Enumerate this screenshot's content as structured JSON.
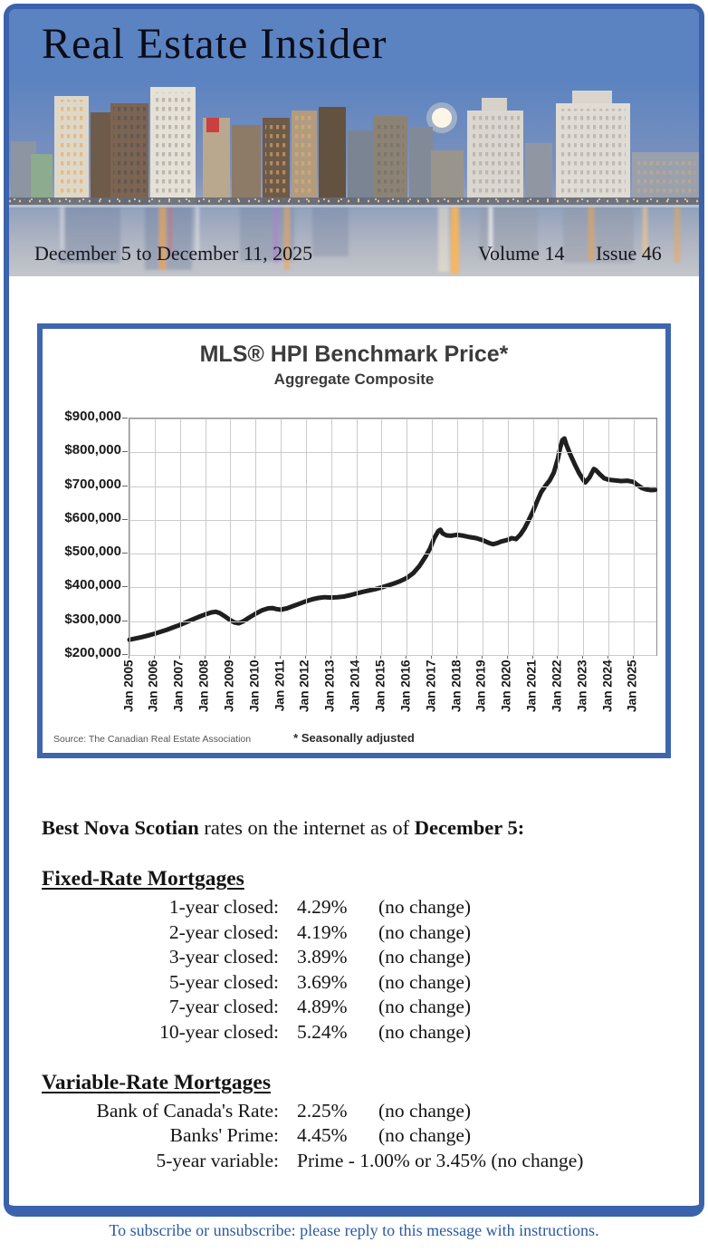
{
  "header": {
    "title": "Real Estate Insider",
    "date_range": "December 5 to December 11, 2025",
    "volume": "Volume 14",
    "issue": "Issue 46"
  },
  "chart_data": {
    "type": "line",
    "title": "MLS® HPI Benchmark Price*",
    "subtitle": "Aggregate Composite",
    "xlabel": "",
    "ylabel": "",
    "x_range": [
      2005.0,
      2025.9
    ],
    "y_range": [
      200000,
      900000
    ],
    "y_tick_labels": [
      "$900,000",
      "$800,000",
      "$700,000",
      "$600,000",
      "$500,000",
      "$400,000",
      "$300,000",
      "$200,000"
    ],
    "x_tick_labels": [
      "Jan 2005",
      "Jan 2006",
      "Jan 2007",
      "Jan 2008",
      "Jan 2009",
      "Jan 2010",
      "Jan 2011",
      "Jan 2012",
      "Jan 2013",
      "Jan 2014",
      "Jan 2015",
      "Jan 2016",
      "Jan 2017",
      "Jan 2018",
      "Jan 2019",
      "Jan 2020",
      "Jan 2021",
      "Jan 2022",
      "Jan 2023",
      "Jan 2024",
      "Jan 2025"
    ],
    "grid": true,
    "legend": "none",
    "line_color": "#1f1f1f",
    "source": "Source: The Canadian Real Estate Association",
    "footnote": "* Seasonally adjusted",
    "series": [
      {
        "name": "Aggregate Composite Benchmark Price (seasonally adjusted)",
        "points": [
          [
            2005.0,
            245000
          ],
          [
            2005.25,
            249000
          ],
          [
            2005.5,
            253000
          ],
          [
            2005.75,
            258000
          ],
          [
            2006.0,
            263000
          ],
          [
            2006.25,
            269000
          ],
          [
            2006.5,
            275000
          ],
          [
            2006.75,
            282000
          ],
          [
            2007.0,
            289000
          ],
          [
            2007.25,
            297000
          ],
          [
            2007.5,
            305000
          ],
          [
            2007.75,
            313000
          ],
          [
            2008.0,
            320000
          ],
          [
            2008.25,
            326000
          ],
          [
            2008.42,
            328000
          ],
          [
            2008.58,
            324000
          ],
          [
            2008.75,
            316000
          ],
          [
            2009.0,
            303000
          ],
          [
            2009.17,
            296000
          ],
          [
            2009.33,
            294000
          ],
          [
            2009.5,
            299000
          ],
          [
            2009.75,
            311000
          ],
          [
            2010.0,
            322000
          ],
          [
            2010.25,
            332000
          ],
          [
            2010.5,
            338000
          ],
          [
            2010.67,
            339000
          ],
          [
            2010.83,
            336000
          ],
          [
            2011.0,
            334000
          ],
          [
            2011.25,
            338000
          ],
          [
            2011.5,
            345000
          ],
          [
            2011.75,
            352000
          ],
          [
            2012.0,
            359000
          ],
          [
            2012.25,
            365000
          ],
          [
            2012.5,
            369000
          ],
          [
            2012.75,
            371000
          ],
          [
            2013.0,
            370000
          ],
          [
            2013.25,
            371000
          ],
          [
            2013.5,
            373000
          ],
          [
            2013.75,
            377000
          ],
          [
            2014.0,
            382000
          ],
          [
            2014.25,
            387000
          ],
          [
            2014.5,
            391000
          ],
          [
            2014.75,
            395000
          ],
          [
            2015.0,
            400000
          ],
          [
            2015.25,
            406000
          ],
          [
            2015.5,
            412000
          ],
          [
            2015.75,
            419000
          ],
          [
            2016.0,
            428000
          ],
          [
            2016.25,
            442000
          ],
          [
            2016.5,
            463000
          ],
          [
            2016.75,
            492000
          ],
          [
            2016.92,
            515000
          ],
          [
            2017.08,
            545000
          ],
          [
            2017.25,
            567000
          ],
          [
            2017.33,
            571000
          ],
          [
            2017.42,
            560000
          ],
          [
            2017.58,
            554000
          ],
          [
            2017.75,
            553000
          ],
          [
            2018.0,
            556000
          ],
          [
            2018.25,
            553000
          ],
          [
            2018.5,
            549000
          ],
          [
            2018.75,
            546000
          ],
          [
            2019.0,
            540000
          ],
          [
            2019.25,
            532000
          ],
          [
            2019.42,
            528000
          ],
          [
            2019.58,
            531000
          ],
          [
            2019.75,
            536000
          ],
          [
            2020.0,
            541000
          ],
          [
            2020.17,
            546000
          ],
          [
            2020.33,
            543000
          ],
          [
            2020.5,
            556000
          ],
          [
            2020.67,
            575000
          ],
          [
            2020.83,
            598000
          ],
          [
            2021.0,
            625000
          ],
          [
            2021.17,
            655000
          ],
          [
            2021.33,
            682000
          ],
          [
            2021.5,
            701000
          ],
          [
            2021.67,
            717000
          ],
          [
            2021.83,
            740000
          ],
          [
            2022.0,
            783000
          ],
          [
            2022.08,
            812000
          ],
          [
            2022.17,
            836000
          ],
          [
            2022.25,
            841000
          ],
          [
            2022.33,
            822000
          ],
          [
            2022.5,
            791000
          ],
          [
            2022.67,
            763000
          ],
          [
            2022.83,
            739000
          ],
          [
            2023.0,
            719000
          ],
          [
            2023.08,
            711000
          ],
          [
            2023.25,
            726000
          ],
          [
            2023.42,
            751000
          ],
          [
            2023.5,
            747000
          ],
          [
            2023.67,
            734000
          ],
          [
            2023.83,
            723000
          ],
          [
            2024.0,
            719000
          ],
          [
            2024.25,
            717000
          ],
          [
            2024.5,
            715000
          ],
          [
            2024.75,
            716000
          ],
          [
            2025.0,
            712000
          ],
          [
            2025.17,
            702000
          ],
          [
            2025.33,
            694000
          ],
          [
            2025.5,
            690000
          ],
          [
            2025.7,
            688000
          ],
          [
            2025.85,
            689000
          ]
        ]
      }
    ]
  },
  "rates": {
    "intro": {
      "bold1": "Best Nova Scotian",
      "mid": " rates on the internet as of ",
      "bold2": "December 5:"
    },
    "fixed": {
      "heading": "Fixed-Rate Mortgages",
      "rows": [
        {
          "label": "1-year closed:",
          "rate": "4.29%",
          "change": "(no change)"
        },
        {
          "label": "2-year closed:",
          "rate": "4.19%",
          "change": "(no change)"
        },
        {
          "label": "3-year closed:",
          "rate": "3.89%",
          "change": "(no change)"
        },
        {
          "label": "5-year closed:",
          "rate": "3.69%",
          "change": "(no change)"
        },
        {
          "label": "7-year closed:",
          "rate": "4.89%",
          "change": "(no change)"
        },
        {
          "label": "10-year closed:",
          "rate": "5.24%",
          "change": "(no change)"
        }
      ]
    },
    "variable": {
      "heading": "Variable-Rate Mortgages",
      "rows": [
        {
          "label": "Bank of Canada's Rate:",
          "rate": "2.25%",
          "change": "(no change)"
        },
        {
          "label": "Banks' Prime:",
          "rate": "4.45%",
          "change": "(no change)"
        },
        {
          "label": "5-year variable:",
          "rate": "Prime - 1.00% or 3.45% (no change)",
          "change": ""
        }
      ]
    }
  },
  "footer": {
    "subscribe": "To subscribe or unsubscribe: please reply to this message with instructions."
  },
  "colors": {
    "page_border": "#3a63ac",
    "header_blue": "#5b83c1",
    "chart_border": "#3d66ae",
    "chart_line": "#1f1f1f",
    "footer_text": "#2a5a9f"
  }
}
